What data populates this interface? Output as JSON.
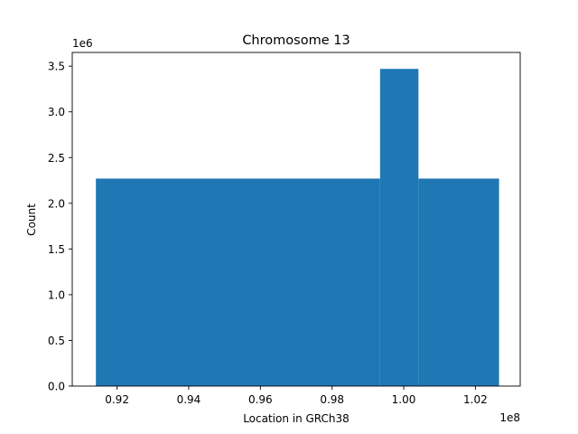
{
  "chart_data": {
    "type": "bar",
    "title": "Chromosome 13",
    "xlabel": "Location in GRCh38",
    "ylabel": "Count",
    "x_offset_label": "1e8",
    "y_offset_label": "1e6",
    "xlim": [
      0.9075,
      1.0325
    ],
    "ylim": [
      0,
      3.65
    ],
    "x_scale": 100000000,
    "y_scale": 1000000,
    "xticks": [
      0.92,
      0.94,
      0.96,
      0.98,
      1.0,
      1.02
    ],
    "xtick_labels": [
      "0.92",
      "0.94",
      "0.96",
      "0.98",
      "1.00",
      "1.02"
    ],
    "yticks": [
      0.0,
      0.5,
      1.0,
      1.5,
      2.0,
      2.5,
      3.0,
      3.5
    ],
    "ytick_labels": [
      "0.0",
      "0.5",
      "1.0",
      "1.5",
      "2.0",
      "2.5",
      "3.0",
      "3.5"
    ],
    "bins": [
      {
        "x0": 0.9141,
        "x1": 0.9934,
        "value": 2.27
      },
      {
        "x0": 0.9934,
        "x1": 1.0041,
        "value": 3.47
      },
      {
        "x0": 1.0041,
        "x1": 1.0266,
        "value": 2.27
      }
    ],
    "bar_color": "#1f77b4",
    "grid": false,
    "legend": "none"
  }
}
